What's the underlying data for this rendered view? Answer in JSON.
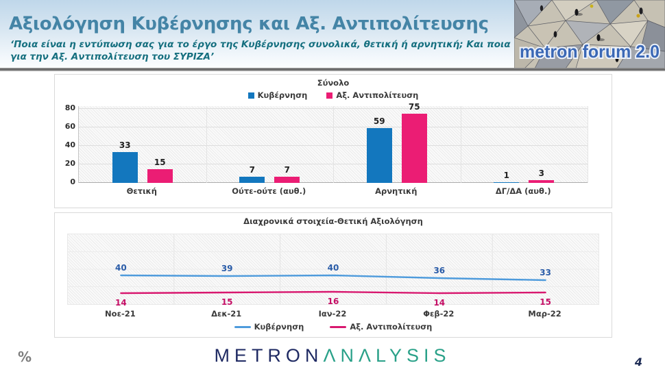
{
  "slide": {
    "title": "Αξιολόγηση Κυβέρνησης και Αξ. Αντιπολίτευσης",
    "subtitle_line1": "‘Ποια είναι η εντύπωση σας για το έργο της Κυβέρνησης συνολικά, θετική ή αρνητική; Και ποια",
    "subtitle_line2": "για την Αξ. Αντιπολίτευση του ΣΥΡΙΖΑ’",
    "percent_note": "%",
    "page_number": "4"
  },
  "logo": {
    "text": "metron forum 2.0"
  },
  "brand": {
    "metron": "METRON",
    "analysis": "ΛNΛLYSIS"
  },
  "colors": {
    "government_bar": "#1377be",
    "opposition_bar": "#eb1d74",
    "government_line": "#4e9bdc",
    "opposition_line": "#d8186f",
    "government_label": "#2a5ca8",
    "opposition_label": "#c50f66"
  },
  "chart_data": [
    {
      "type": "bar",
      "title": "Σύνολο",
      "categories": [
        "Θετική",
        "Ούτε-ούτε (αυθ.)",
        "Αρνητική",
        "ΔΓ/ΔΑ (αυθ.)"
      ],
      "series": [
        {
          "name": "Κυβέρνηση",
          "color": "#1377be",
          "values": [
            33,
            7,
            59,
            1
          ]
        },
        {
          "name": "Αξ. Αντιπολίτευση",
          "color": "#eb1d74",
          "values": [
            15,
            7,
            75,
            3
          ]
        }
      ],
      "ylabel": "",
      "ylim": [
        0,
        80
      ],
      "yticks": [
        0,
        20,
        40,
        60,
        80
      ],
      "grid": true,
      "legend_position": "top"
    },
    {
      "type": "line",
      "title": "Διαχρονικά στοιχεία-Θετική Αξιολόγηση",
      "categories": [
        "Νοε-21",
        "Δεκ-21",
        "Ιαν-22",
        "Φεβ-22",
        "Μαρ-22"
      ],
      "series": [
        {
          "name": "Κυβέρνηση",
          "color": "#4e9bdc",
          "label_color": "#2a5ca8",
          "values": [
            40,
            39,
            40,
            36,
            33
          ]
        },
        {
          "name": "Αξ. Αντιπολίτευση",
          "color": "#d8186f",
          "label_color": "#c50f66",
          "values": [
            14,
            15,
            16,
            14,
            15
          ]
        }
      ],
      "ylim": [
        0,
        100
      ],
      "grid": true,
      "legend_position": "bottom"
    }
  ]
}
